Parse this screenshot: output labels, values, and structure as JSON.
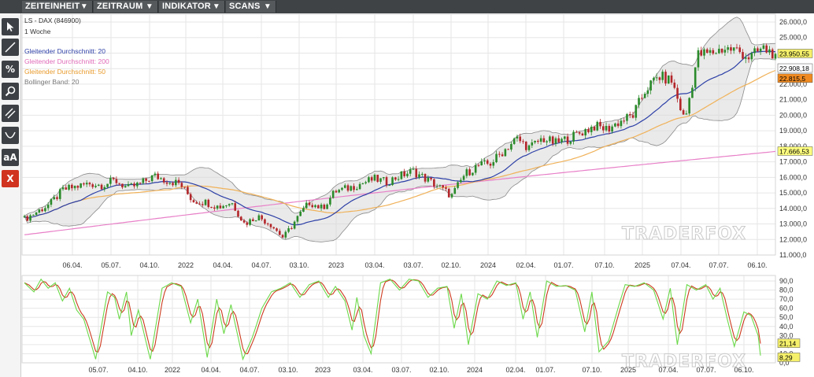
{
  "menu": [
    {
      "label": "ZEITEINHEIT",
      "icon": "dropdown-caret-icon"
    },
    {
      "label": "ZEITRAUM",
      "icon": "dropdown-caret-icon"
    },
    {
      "label": "INDIKATOR",
      "icon": "dropdown-caret-icon"
    },
    {
      "label": "SCANS",
      "icon": "dropdown-caret-icon"
    }
  ],
  "caret": "▼",
  "tools": [
    {
      "name": "cursor-tool",
      "icon": "cursor-arrow-icon"
    },
    {
      "name": "line-tool",
      "icon": "trend-line-icon"
    },
    {
      "name": "percent-tool",
      "icon": "percent-icon",
      "text": "%"
    },
    {
      "name": "zoom-tool",
      "icon": "magnifier-icon"
    },
    {
      "name": "parallel-tool",
      "icon": "parallel-lines-icon"
    },
    {
      "name": "curve-tool",
      "icon": "curve-icon"
    },
    {
      "name": "text-tool",
      "icon": "text-aa-icon",
      "text": "aA"
    },
    {
      "name": "delete-tool",
      "icon": "delete-x-icon",
      "text": "X"
    }
  ],
  "legend": {
    "instrument": "LS - DAX (846900)",
    "timeframe": "1 Woche",
    "ma20": "Gleitender Durchschnitt: 20",
    "ma200": "Gleitender Durchschnitt: 200",
    "ma50": "Gleitender Durchschnitt: 50",
    "bollinger": "Bollinger Band: 20"
  },
  "watermark": "TRADERFOX",
  "colors": {
    "up": "#2a8a2a",
    "down": "#b3262a",
    "ma20": "#2c3fa6",
    "ma50": "#f0b25a",
    "ma200": "#e880c8",
    "band_fill": "#d9d9d9",
    "band_line": "#8a8a8a",
    "stoch_k": "#6cd94a",
    "stoch_d": "#cc3b1e",
    "label_last": "#f5f06a",
    "label_ma50": "#f08a20",
    "label_ma200": "#ffff80",
    "grid": "#e6e6e6"
  },
  "chart_data": [
    {
      "type": "candlestick",
      "title": "LS - DAX (846900)",
      "subtitle": "1 Woche",
      "ylim": [
        11000,
        26000
      ],
      "y_ticks": [
        "11.000,0",
        "12.000,0",
        "13.000,0",
        "14.000,0",
        "15.000,0",
        "16.000,0",
        "17.000,0",
        "18.000,0",
        "19.000,0",
        "20.000,0",
        "21.000,0",
        "22.000,0",
        "23.000,0",
        "24.000,0",
        "25.000,0",
        "26.000,0"
      ],
      "x_ticks": [
        "06.04.",
        "05.07.",
        "04.10.",
        "2022",
        "04.04.",
        "04.07.",
        "03.10.",
        "2023",
        "03.04.",
        "03.07.",
        "02.10.",
        "2024",
        "02.04.",
        "01.07.",
        "07.10.",
        "2025",
        "07.04.",
        "07.07.",
        "06.10."
      ],
      "close_anchors": [
        [
          "2021-01",
          13300
        ],
        [
          "2021-02",
          13800
        ],
        [
          "2021-03",
          14300
        ],
        [
          "2021-04",
          15200
        ],
        [
          "2021-05",
          15400
        ],
        [
          "2021-06",
          15600
        ],
        [
          "2021-07",
          15500
        ],
        [
          "2021-08",
          15800
        ],
        [
          "2021-09",
          15300
        ],
        [
          "2021-10",
          15600
        ],
        [
          "2021-11",
          16100
        ],
        [
          "2021-12",
          15800
        ],
        [
          "2022-01",
          15600
        ],
        [
          "2022-02",
          14500
        ],
        [
          "2022-03",
          14400
        ],
        [
          "2022-04",
          14100
        ],
        [
          "2022-05",
          14400
        ],
        [
          "2022-06",
          13000
        ],
        [
          "2022-07",
          13500
        ],
        [
          "2022-08",
          13000
        ],
        [
          "2022-09",
          12100
        ],
        [
          "2022-10",
          13300
        ],
        [
          "2022-11",
          14400
        ],
        [
          "2022-12",
          14000
        ],
        [
          "2023-01",
          15100
        ],
        [
          "2023-02",
          15300
        ],
        [
          "2023-03",
          15600
        ],
        [
          "2023-04",
          15900
        ],
        [
          "2023-05",
          15700
        ],
        [
          "2023-06",
          16100
        ],
        [
          "2023-07",
          16400
        ],
        [
          "2023-08",
          15900
        ],
        [
          "2023-09",
          15400
        ],
        [
          "2023-10",
          14800
        ],
        [
          "2023-11",
          16200
        ],
        [
          "2023-12",
          16750
        ],
        [
          "2024-01",
          16900
        ],
        [
          "2024-02",
          17700
        ],
        [
          "2024-03",
          18500
        ],
        [
          "2024-04",
          17900
        ],
        [
          "2024-05",
          18500
        ],
        [
          "2024-06",
          18200
        ],
        [
          "2024-07",
          18500
        ],
        [
          "2024-08",
          18900
        ],
        [
          "2024-09",
          19300
        ],
        [
          "2024-10",
          19100
        ],
        [
          "2024-11",
          19600
        ],
        [
          "2024-12",
          20000
        ],
        [
          "2025-01",
          21700
        ],
        [
          "2025-02",
          22500
        ],
        [
          "2025-03",
          22200
        ],
        [
          "2025-04",
          19600
        ],
        [
          "2025-05",
          23900
        ],
        [
          "2025-06",
          24000
        ],
        [
          "2025-07",
          24300
        ],
        [
          "2025-08",
          24200
        ],
        [
          "2025-09",
          23700
        ],
        [
          "2025-10",
          24300
        ],
        [
          "2025-11",
          23950
        ]
      ],
      "series": [
        {
          "name": "Gleitender Durchschnitt: 20",
          "last": "22.908,18"
        },
        {
          "name": "Gleitender Durchschnitt: 200",
          "last": "17.666,53"
        },
        {
          "name": "Gleitender Durchschnitt: 50",
          "last": "22.815,5"
        },
        {
          "name": "Bollinger Band: 20"
        }
      ],
      "last_close": "23.950,55",
      "last_values": {
        "close": 23950.55,
        "ma20": 22908.18,
        "ma50": 22815.5,
        "ma200": 17666.53
      }
    },
    {
      "type": "line",
      "ylim": [
        0,
        100
      ],
      "y_ticks": [
        "0,0",
        "10,0",
        "20,0",
        "30,0",
        "40,0",
        "50,0",
        "60,0",
        "70,0",
        "80,0",
        "90,0"
      ],
      "x_ticks": [
        "05.07.",
        "04.10.",
        "2022",
        "04.04.",
        "04.07.",
        "03.10.",
        "2023",
        "03.04.",
        "03.07.",
        "02.10.",
        "2024",
        "02.04.",
        "01.07.",
        "07.10.",
        "2025",
        "07.04.",
        "07.07.",
        "06.10."
      ],
      "k_anchors": [
        [
          0,
          88
        ],
        [
          4,
          78
        ],
        [
          7,
          92
        ],
        [
          10,
          82
        ],
        [
          13,
          88
        ],
        [
          16,
          68
        ],
        [
          19,
          82
        ],
        [
          22,
          58
        ],
        [
          25,
          48
        ],
        [
          30,
          4
        ],
        [
          35,
          78
        ],
        [
          38,
          72
        ],
        [
          40,
          48
        ],
        [
          43,
          78
        ],
        [
          45,
          30
        ],
        [
          48,
          58
        ],
        [
          53,
          4
        ],
        [
          58,
          82
        ],
        [
          62,
          88
        ],
        [
          66,
          84
        ],
        [
          70,
          44
        ],
        [
          73,
          70
        ],
        [
          77,
          6
        ],
        [
          81,
          70
        ],
        [
          84,
          32
        ],
        [
          87,
          64
        ],
        [
          92,
          4
        ],
        [
          96,
          28
        ],
        [
          100,
          60
        ],
        [
          104,
          78
        ],
        [
          108,
          82
        ],
        [
          112,
          88
        ],
        [
          116,
          72
        ],
        [
          120,
          86
        ],
        [
          124,
          90
        ],
        [
          128,
          72
        ],
        [
          131,
          84
        ],
        [
          135,
          68
        ],
        [
          138,
          36
        ],
        [
          140,
          72
        ],
        [
          143,
          30
        ],
        [
          146,
          10
        ],
        [
          150,
          88
        ],
        [
          154,
          92
        ],
        [
          158,
          80
        ],
        [
          162,
          92
        ],
        [
          166,
          90
        ],
        [
          170,
          72
        ],
        [
          174,
          82
        ],
        [
          178,
          84
        ],
        [
          181,
          38
        ],
        [
          184,
          76
        ],
        [
          187,
          20
        ],
        [
          191,
          76
        ],
        [
          195,
          70
        ],
        [
          199,
          90
        ],
        [
          203,
          85
        ],
        [
          207,
          88
        ],
        [
          210,
          48
        ],
        [
          213,
          78
        ],
        [
          216,
          28
        ],
        [
          220,
          90
        ],
        [
          224,
          84
        ],
        [
          228,
          85
        ],
        [
          232,
          80
        ],
        [
          236,
          34
        ],
        [
          239,
          78
        ],
        [
          242,
          12
        ],
        [
          246,
          24
        ],
        [
          250,
          60
        ],
        [
          253,
          86
        ],
        [
          257,
          84
        ],
        [
          261,
          88
        ],
        [
          265,
          80
        ],
        [
          269,
          48
        ],
        [
          272,
          82
        ],
        [
          275,
          20
        ],
        [
          279,
          86
        ],
        [
          283,
          80
        ],
        [
          287,
          86
        ],
        [
          290,
          70
        ],
        [
          293,
          82
        ],
        [
          296,
          48
        ],
        [
          299,
          18
        ],
        [
          303,
          56
        ],
        [
          306,
          52
        ],
        [
          309,
          30
        ],
        [
          310,
          8
        ]
      ],
      "last": {
        "d": "21,14",
        "k": "8,29"
      }
    }
  ]
}
